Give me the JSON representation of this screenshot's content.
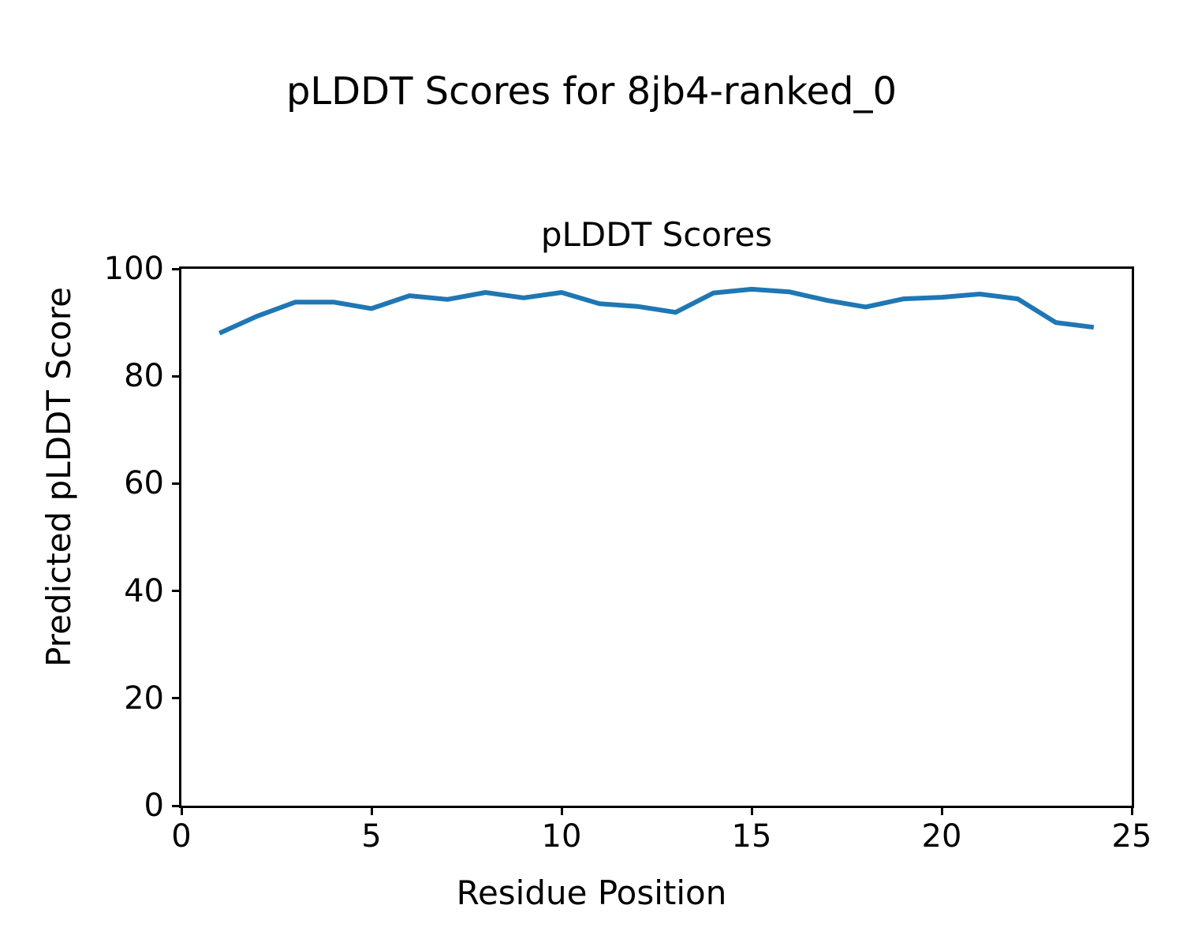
{
  "figure": {
    "suptitle": "pLDDT Scores for 8jb4-ranked_0"
  },
  "chart_data": {
    "type": "line",
    "title": "pLDDT Scores",
    "xlabel": "Residue Position",
    "ylabel": "Predicted pLDDT Score",
    "x": [
      1,
      2,
      3,
      4,
      5,
      6,
      7,
      8,
      9,
      10,
      11,
      12,
      13,
      14,
      15,
      16,
      17,
      18,
      19,
      20,
      21,
      22,
      23,
      24
    ],
    "y": [
      88.0,
      91.2,
      93.8,
      93.8,
      92.6,
      95.0,
      94.3,
      95.6,
      94.6,
      95.6,
      93.5,
      93.0,
      91.9,
      95.5,
      96.2,
      95.7,
      94.1,
      92.9,
      94.4,
      94.7,
      95.3,
      94.4,
      90.0,
      89.1
    ],
    "xlim": [
      0,
      25
    ],
    "ylim": [
      0,
      100
    ],
    "xticks": [
      0,
      5,
      10,
      15,
      20,
      25
    ],
    "yticks": [
      0,
      20,
      40,
      60,
      80,
      100
    ],
    "grid": false,
    "legend_position": "none",
    "line_color": "#1f77b4",
    "line_width": 6,
    "axis_color": "#000000"
  }
}
